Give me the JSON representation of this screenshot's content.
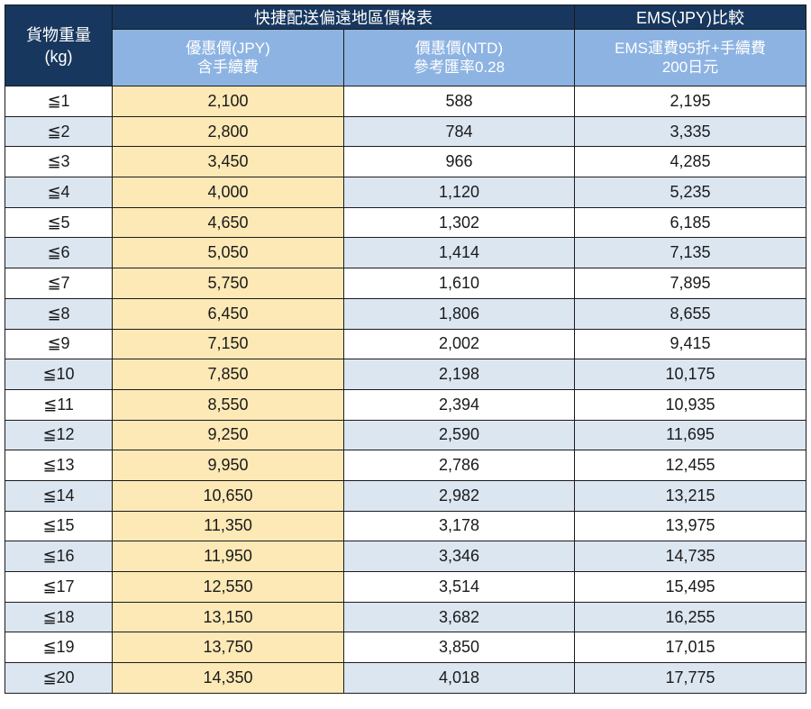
{
  "header": {
    "weight_label_line1": "貨物重量",
    "weight_label_line2": "(kg)",
    "group_main": "快捷配送偏遠地區價格表",
    "group_ems": "EMS(JPY)比較",
    "col_jpy_line1": "優惠價(JPY)",
    "col_jpy_line2": "含手續費",
    "col_ntd_line1": "價惠價(NTD)",
    "col_ntd_line2": "參考匯率0.28",
    "col_ems_line1": "EMS運費95折+手續費",
    "col_ems_line2": "200日元"
  },
  "rows": [
    {
      "weight": "≦1",
      "jpy": "2,100",
      "ntd": "588",
      "ems": "2,195"
    },
    {
      "weight": "≦2",
      "jpy": "2,800",
      "ntd": "784",
      "ems": "3,335"
    },
    {
      "weight": "≦3",
      "jpy": "3,450",
      "ntd": "966",
      "ems": "4,285"
    },
    {
      "weight": "≦4",
      "jpy": "4,000",
      "ntd": "1,120",
      "ems": "5,235"
    },
    {
      "weight": "≦5",
      "jpy": "4,650",
      "ntd": "1,302",
      "ems": "6,185"
    },
    {
      "weight": "≦6",
      "jpy": "5,050",
      "ntd": "1,414",
      "ems": "7,135"
    },
    {
      "weight": "≦7",
      "jpy": "5,750",
      "ntd": "1,610",
      "ems": "7,895"
    },
    {
      "weight": "≦8",
      "jpy": "6,450",
      "ntd": "1,806",
      "ems": "8,655"
    },
    {
      "weight": "≦9",
      "jpy": "7,150",
      "ntd": "2,002",
      "ems": "9,415"
    },
    {
      "weight": "≦10",
      "jpy": "7,850",
      "ntd": "2,198",
      "ems": "10,175"
    },
    {
      "weight": "≦11",
      "jpy": "8,550",
      "ntd": "2,394",
      "ems": "10,935"
    },
    {
      "weight": "≦12",
      "jpy": "9,250",
      "ntd": "2,590",
      "ems": "11,695"
    },
    {
      "weight": "≦13",
      "jpy": "9,950",
      "ntd": "2,786",
      "ems": "12,455"
    },
    {
      "weight": "≦14",
      "jpy": "10,650",
      "ntd": "2,982",
      "ems": "13,215"
    },
    {
      "weight": "≦15",
      "jpy": "11,350",
      "ntd": "3,178",
      "ems": "13,975"
    },
    {
      "weight": "≦16",
      "jpy": "11,950",
      "ntd": "3,346",
      "ems": "14,735"
    },
    {
      "weight": "≦17",
      "jpy": "12,550",
      "ntd": "3,514",
      "ems": "15,495"
    },
    {
      "weight": "≦18",
      "jpy": "13,150",
      "ntd": "3,682",
      "ems": "16,255"
    },
    {
      "weight": "≦19",
      "jpy": "13,750",
      "ntd": "3,850",
      "ems": "17,015"
    },
    {
      "weight": "≦20",
      "jpy": "14,350",
      "ntd": "4,018",
      "ems": "17,775"
    }
  ],
  "colors": {
    "header_dark": "#17375e",
    "header_light": "#8db3e2",
    "stripe": "#dce6f1",
    "jpy_highlight": "#fde9b6"
  }
}
